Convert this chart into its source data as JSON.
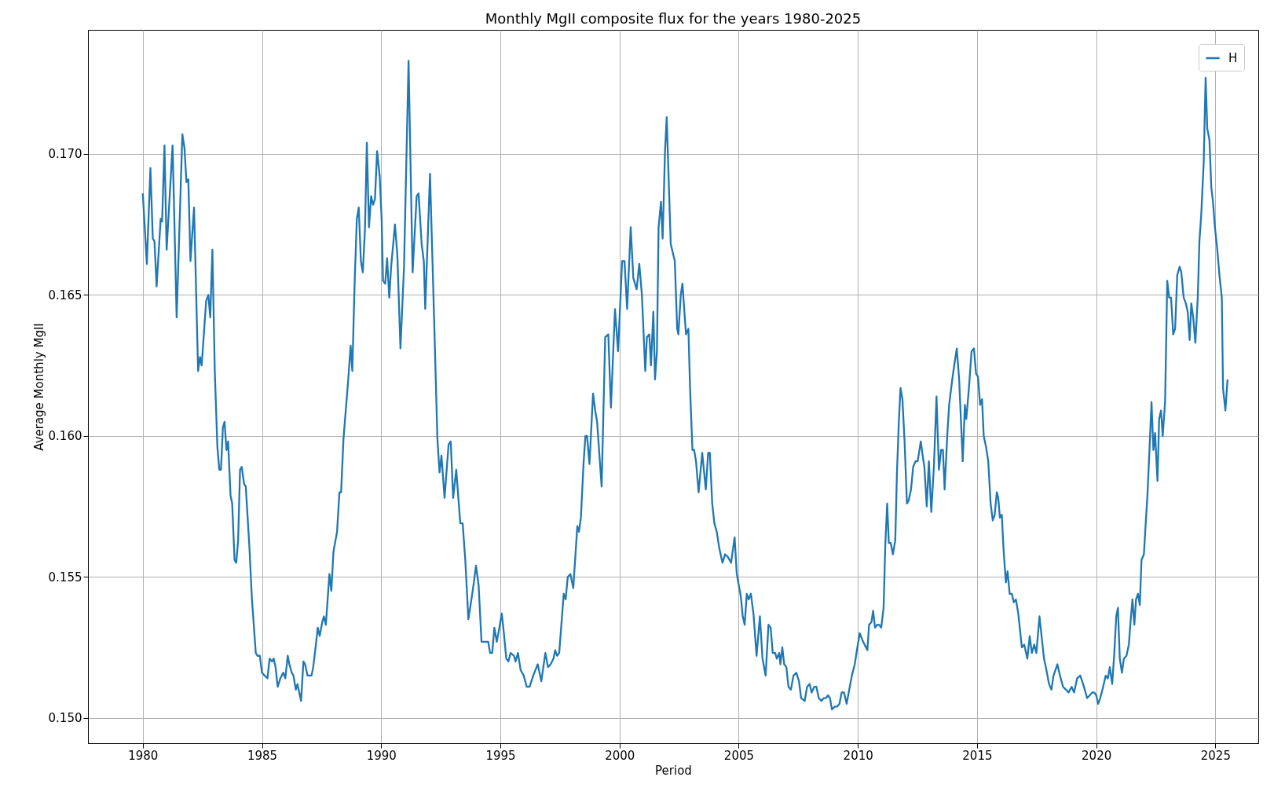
{
  "chart_data": {
    "type": "line",
    "title": "Monthly MgII composite flux for the years 1980-2025",
    "xlabel": "Period",
    "ylabel": "Average Monthly MgII",
    "xlim": [
      1977.7,
      2026.8
    ],
    "xticks": [
      1980,
      1985,
      1990,
      1995,
      2000,
      2005,
      2010,
      2015,
      2020,
      2025
    ],
    "ylim": [
      0.1491,
      0.1744
    ],
    "yticks": [
      {
        "value": 0.15,
        "label": "0.150"
      },
      0.155,
      {
        "value": 0.16,
        "label": "0.160"
      },
      0.165,
      {
        "value": 0.17,
        "label": "0.170"
      }
    ],
    "grid": true,
    "legend": "top right",
    "marker": "none",
    "line_style": "solid",
    "series": [
      {
        "name": "H",
        "color": "#1f77b4",
        "x": [
          1980.0,
          1980.17,
          1980.32,
          1980.42,
          1980.49,
          1980.58,
          1980.75,
          1980.81,
          1980.91,
          1981.0,
          1981.25,
          1981.42,
          1981.66,
          1981.75,
          1981.83,
          1981.91,
          1982.0,
          1982.15,
          1982.32,
          1982.4,
          1982.47,
          1982.66,
          1982.75,
          1982.83,
          1982.92,
          1983.02,
          1983.13,
          1983.21,
          1983.28,
          1983.36,
          1983.43,
          1983.51,
          1983.58,
          1983.68,
          1983.75,
          1983.85,
          1983.92,
          1984.0,
          1984.08,
          1984.15,
          1984.25,
          1984.32,
          1984.47,
          1984.58,
          1984.74,
          1984.81,
          1984.91,
          1985.0,
          1985.11,
          1985.23,
          1985.32,
          1985.42,
          1985.49,
          1985.57,
          1985.66,
          1985.77,
          1985.89,
          1985.98,
          1986.08,
          1986.15,
          1986.25,
          1986.32,
          1986.42,
          1986.49,
          1986.64,
          1986.74,
          1986.81,
          1986.91,
          1987.08,
          1987.15,
          1987.25,
          1987.34,
          1987.42,
          1987.53,
          1987.6,
          1987.68,
          1987.83,
          1987.91,
          1988.0,
          1988.15,
          1988.25,
          1988.32,
          1988.42,
          1988.62,
          1988.72,
          1988.79,
          1988.89,
          1988.98,
          1989.06,
          1989.15,
          1989.23,
          1989.32,
          1989.4,
          1989.49,
          1989.58,
          1989.66,
          1989.74,
          1989.83,
          1989.94,
          1990.02,
          1990.08,
          1990.17,
          1990.25,
          1990.34,
          1990.42,
          1990.58,
          1990.68,
          1990.81,
          1990.96,
          1991.15,
          1991.32,
          1991.49,
          1991.57,
          1991.7,
          1991.79,
          1991.85,
          1992.05,
          1992.23,
          1992.36,
          1992.45,
          1992.53,
          1992.66,
          1992.83,
          1992.92,
          1993.02,
          1993.15,
          1993.32,
          1993.42,
          1993.53,
          1993.66,
          1993.77,
          1993.89,
          1993.98,
          1994.09,
          1994.21,
          1994.34,
          1994.49,
          1994.57,
          1994.66,
          1994.75,
          1994.85,
          1994.94,
          1995.06,
          1995.15,
          1995.25,
          1995.34,
          1995.43,
          1995.57,
          1995.64,
          1995.74,
          1995.85,
          1995.98,
          1996.11,
          1996.23,
          1996.38,
          1996.57,
          1996.72,
          1996.89,
          1997.0,
          1997.11,
          1997.23,
          1997.3,
          1997.38,
          1997.47,
          1997.66,
          1997.74,
          1997.83,
          1997.94,
          1998.06,
          1998.23,
          1998.3,
          1998.38,
          1998.49,
          1998.57,
          1998.64,
          1998.74,
          1998.89,
          1998.98,
          1999.06,
          1999.25,
          1999.4,
          1999.53,
          1999.64,
          1999.81,
          1999.94,
          2000.11,
          2000.21,
          2000.32,
          2000.47,
          2000.58,
          2000.72,
          2000.83,
          2000.94,
          2001.08,
          2001.15,
          2001.25,
          2001.32,
          2001.42,
          2001.49,
          2001.57,
          2001.64,
          2001.74,
          2001.81,
          2001.91,
          2001.98,
          2002.15,
          2002.32,
          2002.42,
          2002.47,
          2002.57,
          2002.64,
          2002.79,
          2002.89,
          2002.96,
          2003.06,
          2003.13,
          2003.21,
          2003.32,
          2003.47,
          2003.62,
          2003.72,
          2003.79,
          2003.89,
          2003.98,
          2004.08,
          2004.19,
          2004.32,
          2004.43,
          2004.55,
          2004.68,
          2004.83,
          2004.92,
          2005.09,
          2005.17,
          2005.25,
          2005.34,
          2005.42,
          2005.51,
          2005.62,
          2005.75,
          2005.89,
          2006.0,
          2006.13,
          2006.25,
          2006.34,
          2006.43,
          2006.53,
          2006.6,
          2006.7,
          2006.75,
          2006.83,
          2006.91,
          2007.0,
          2007.09,
          2007.19,
          2007.3,
          2007.42,
          2007.53,
          2007.62,
          2007.77,
          2007.87,
          2007.98,
          2008.06,
          2008.17,
          2008.26,
          2008.36,
          2008.47,
          2008.57,
          2008.66,
          2008.75,
          2008.83,
          2008.91,
          2009.04,
          2009.13,
          2009.23,
          2009.32,
          2009.42,
          2009.53,
          2009.64,
          2009.75,
          2009.87,
          2009.96,
          2010.08,
          2010.17,
          2010.28,
          2010.4,
          2010.47,
          2010.57,
          2010.64,
          2010.72,
          2010.81,
          2010.89,
          2010.98,
          2011.08,
          2011.15,
          2011.23,
          2011.3,
          2011.38,
          2011.47,
          2011.57,
          2011.64,
          2011.72,
          2011.79,
          2011.87,
          2011.96,
          2012.06,
          2012.13,
          2012.23,
          2012.32,
          2012.42,
          2012.51,
          2012.64,
          2012.72,
          2012.79,
          2012.89,
          2012.98,
          2013.08,
          2013.19,
          2013.3,
          2013.4,
          2013.49,
          2013.57,
          2013.64,
          2013.75,
          2013.83,
          2013.96,
          2014.06,
          2014.15,
          2014.25,
          2014.4,
          2014.49,
          2014.55,
          2014.66,
          2014.77,
          2014.87,
          2014.96,
          2015.04,
          2015.13,
          2015.21,
          2015.28,
          2015.38,
          2015.47,
          2015.57,
          2015.66,
          2015.74,
          2015.83,
          2015.89,
          2015.96,
          2016.04,
          2016.11,
          2016.21,
          2016.28,
          2016.37,
          2016.46,
          2016.54,
          2016.63,
          2016.73,
          2016.88,
          2016.98,
          2017.11,
          2017.21,
          2017.3,
          2017.4,
          2017.49,
          2017.62,
          2017.72,
          2017.81,
          2017.91,
          2018.02,
          2018.12,
          2018.21,
          2018.37,
          2018.48,
          2018.61,
          2018.73,
          2018.84,
          2018.97,
          2019.07,
          2019.2,
          2019.33,
          2019.45,
          2019.62,
          2019.73,
          2019.83,
          2019.92,
          2020.0,
          2020.08,
          2020.17,
          2020.29,
          2020.4,
          2020.49,
          2020.57,
          2020.67,
          2020.76,
          2020.84,
          2020.91,
          2020.99,
          2021.08,
          2021.16,
          2021.27,
          2021.37,
          2021.44,
          2021.52,
          2021.6,
          2021.67,
          2021.75,
          2021.83,
          2021.9,
          2022.0,
          2022.07,
          2022.15,
          2022.24,
          2022.32,
          2022.4,
          2022.47,
          2022.57,
          2022.64,
          2022.72,
          2022.79,
          2022.89,
          2022.98,
          2023.06,
          2023.14,
          2023.23,
          2023.31,
          2023.4,
          2023.5,
          2023.57,
          2023.67,
          2023.76,
          2023.84,
          2023.92,
          2023.99,
          2024.07,
          2024.16,
          2024.26,
          2024.33,
          2024.41,
          2024.51,
          2024.59,
          2024.66,
          2024.75,
          2024.83,
          2024.9,
          2024.98,
          2025.08,
          2025.17,
          2025.27,
          2025.32,
          2025.42,
          2025.51
        ],
        "values": [
          0.1686,
          0.1661,
          0.1695,
          0.167,
          0.1669,
          0.1653,
          0.1677,
          0.1676,
          0.1703,
          0.1666,
          0.1703,
          0.1642,
          0.1707,
          0.1702,
          0.169,
          0.1691,
          0.1662,
          0.1681,
          0.1623,
          0.1628,
          0.1625,
          0.1648,
          0.165,
          0.1642,
          0.1666,
          0.1623,
          0.1596,
          0.1588,
          0.1588,
          0.1603,
          0.1605,
          0.1595,
          0.1598,
          0.1579,
          0.1576,
          0.1556,
          0.1555,
          0.1563,
          0.1588,
          0.1589,
          0.1583,
          0.1582,
          0.1561,
          0.1542,
          0.1523,
          0.1522,
          0.1522,
          0.1516,
          0.1515,
          0.1514,
          0.1521,
          0.152,
          0.1521,
          0.1518,
          0.1511,
          0.1514,
          0.1516,
          0.1514,
          0.1522,
          0.1519,
          0.1516,
          0.1515,
          0.151,
          0.1512,
          0.1506,
          0.152,
          0.1519,
          0.1515,
          0.1515,
          0.1518,
          0.1525,
          0.1532,
          0.1529,
          0.1534,
          0.1536,
          0.1533,
          0.1551,
          0.1545,
          0.1559,
          0.1566,
          0.158,
          0.158,
          0.1599,
          0.162,
          0.1632,
          0.1623,
          0.1655,
          0.1677,
          0.1681,
          0.1662,
          0.1658,
          0.1673,
          0.1704,
          0.1674,
          0.1685,
          0.1682,
          0.1684,
          0.1701,
          0.1692,
          0.1677,
          0.1655,
          0.1654,
          0.1663,
          0.1649,
          0.166,
          0.1675,
          0.1664,
          0.1631,
          0.166,
          0.1733,
          0.1658,
          0.1685,
          0.1686,
          0.1668,
          0.1662,
          0.1645,
          0.1693,
          0.1639,
          0.1599,
          0.1587,
          0.1593,
          0.1578,
          0.1597,
          0.1598,
          0.1578,
          0.1588,
          0.1569,
          0.1569,
          0.1556,
          0.1535,
          0.1541,
          0.1548,
          0.1554,
          0.1547,
          0.1527,
          0.1527,
          0.1527,
          0.1523,
          0.1523,
          0.1532,
          0.1527,
          0.1531,
          0.1537,
          0.153,
          0.1521,
          0.152,
          0.1523,
          0.1522,
          0.152,
          0.1523,
          0.1517,
          0.1515,
          0.1511,
          0.1511,
          0.1515,
          0.1519,
          0.1513,
          0.1523,
          0.1518,
          0.1519,
          0.1521,
          0.1524,
          0.1522,
          0.1523,
          0.1544,
          0.1542,
          0.155,
          0.1551,
          0.1546,
          0.1568,
          0.1566,
          0.1571,
          0.159,
          0.16,
          0.16,
          0.159,
          0.1615,
          0.1609,
          0.1605,
          0.1582,
          0.1635,
          0.1636,
          0.161,
          0.1645,
          0.163,
          0.1662,
          0.1662,
          0.1645,
          0.1674,
          0.1656,
          0.1652,
          0.1661,
          0.165,
          0.1623,
          0.1635,
          0.1636,
          0.1625,
          0.1644,
          0.162,
          0.163,
          0.1674,
          0.1683,
          0.167,
          0.1701,
          0.1713,
          0.1668,
          0.1662,
          0.1638,
          0.1636,
          0.165,
          0.1654,
          0.1636,
          0.1638,
          0.1617,
          0.1595,
          0.1595,
          0.1591,
          0.158,
          0.1594,
          0.1581,
          0.1594,
          0.1594,
          0.1576,
          0.1569,
          0.1566,
          0.156,
          0.1555,
          0.1558,
          0.1557,
          0.1555,
          0.1564,
          0.1551,
          0.1543,
          0.1536,
          0.1533,
          0.1544,
          0.1542,
          0.1544,
          0.1537,
          0.1522,
          0.1536,
          0.1521,
          0.1515,
          0.1533,
          0.1532,
          0.1523,
          0.1523,
          0.1521,
          0.1523,
          0.1519,
          0.1525,
          0.1519,
          0.1518,
          0.1511,
          0.151,
          0.1515,
          0.1516,
          0.1513,
          0.1507,
          0.1506,
          0.1511,
          0.1512,
          0.1509,
          0.1511,
          0.1511,
          0.1507,
          0.1506,
          0.1507,
          0.1507,
          0.1508,
          0.1507,
          0.1503,
          0.1504,
          0.1504,
          0.1505,
          0.1509,
          0.1509,
          0.1505,
          0.151,
          0.1515,
          0.1519,
          0.1524,
          0.153,
          0.1528,
          0.1526,
          0.1524,
          0.1533,
          0.1534,
          0.1538,
          0.1532,
          0.1533,
          0.1533,
          0.1532,
          0.1539,
          0.1561,
          0.1576,
          0.1562,
          0.1562,
          0.1558,
          0.1563,
          0.1587,
          0.1605,
          0.1617,
          0.1613,
          0.1598,
          0.1576,
          0.1577,
          0.1581,
          0.1589,
          0.1591,
          0.1591,
          0.1598,
          0.1593,
          0.1589,
          0.1575,
          0.1591,
          0.1573,
          0.1589,
          0.1614,
          0.1588,
          0.1595,
          0.1595,
          0.1581,
          0.16,
          0.1611,
          0.162,
          0.1626,
          0.1631,
          0.162,
          0.1591,
          0.1611,
          0.1606,
          0.1617,
          0.163,
          0.1631,
          0.1622,
          0.1621,
          0.1611,
          0.1613,
          0.16,
          0.1596,
          0.1591,
          0.1576,
          0.157,
          0.1572,
          0.158,
          0.1578,
          0.1571,
          0.1572,
          0.156,
          0.1548,
          0.1552,
          0.1544,
          0.1544,
          0.1541,
          0.1542,
          0.1537,
          0.1525,
          0.1526,
          0.1521,
          0.1529,
          0.1523,
          0.1526,
          0.1523,
          0.1536,
          0.1528,
          0.1521,
          0.1517,
          0.1512,
          0.151,
          0.1515,
          0.1519,
          0.1515,
          0.1511,
          0.151,
          0.1509,
          0.1511,
          0.1509,
          0.1514,
          0.1515,
          0.1512,
          0.1507,
          0.1508,
          0.1509,
          0.1509,
          0.1508,
          0.1505,
          0.1507,
          0.1511,
          0.1515,
          0.1514,
          0.1518,
          0.1512,
          0.1523,
          0.1536,
          0.1539,
          0.1521,
          0.1516,
          0.1521,
          0.1522,
          0.1526,
          0.1534,
          0.1542,
          0.1533,
          0.1542,
          0.1544,
          0.154,
          0.1556,
          0.1558,
          0.1568,
          0.1579,
          0.1596,
          0.1612,
          0.1595,
          0.1601,
          0.1584,
          0.1606,
          0.1609,
          0.16,
          0.1612,
          0.1655,
          0.1649,
          0.1649,
          0.1636,
          0.1638,
          0.1657,
          0.166,
          0.1658,
          0.1649,
          0.1647,
          0.1644,
          0.1634,
          0.1647,
          0.1642,
          0.1633,
          0.1649,
          0.1669,
          0.1679,
          0.1697,
          0.1727,
          0.1709,
          0.1705,
          0.1688,
          0.1683,
          0.1674,
          0.1666,
          0.1657,
          0.1649,
          0.1617,
          0.1609,
          0.162
        ]
      }
    ]
  }
}
